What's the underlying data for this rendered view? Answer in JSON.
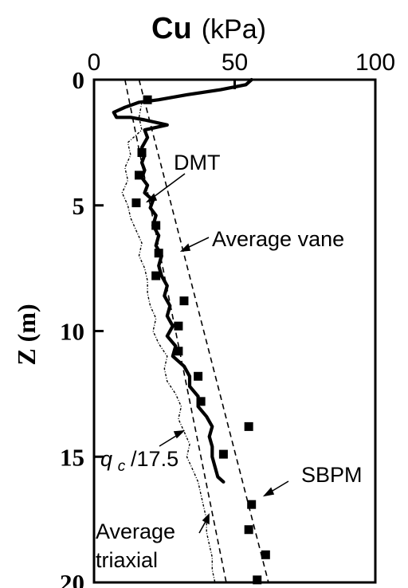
{
  "chart_data": {
    "type": "line",
    "title_bold": "Cu",
    "title_unit": "(kPa)",
    "ylabel": "Z (m)",
    "xlim": [
      0,
      100
    ],
    "ylim": [
      0,
      20
    ],
    "x_ticks": [
      "0",
      "50",
      "100"
    ],
    "x_tick_values": [
      0,
      50,
      100
    ],
    "y_ticks": [
      "0",
      "5",
      "10",
      "15",
      "20"
    ],
    "y_tick_values": [
      0,
      5,
      10,
      15,
      20
    ],
    "y_inverted": true,
    "grid": false,
    "series": [
      {
        "name": "DMT",
        "style": "thick-solid",
        "points": [
          [
            56,
            0.0
          ],
          [
            54,
            0.2
          ],
          [
            45,
            0.4
          ],
          [
            33,
            0.6
          ],
          [
            23,
            0.8
          ],
          [
            16,
            0.9
          ],
          [
            11,
            1.1
          ],
          [
            7,
            1.3
          ],
          [
            8,
            1.5
          ],
          [
            13,
            1.5
          ],
          [
            18,
            1.6
          ],
          [
            26,
            1.8
          ],
          [
            18,
            2.0
          ],
          [
            19,
            2.3
          ],
          [
            17,
            2.7
          ],
          [
            18,
            3.0
          ],
          [
            17,
            3.3
          ],
          [
            18,
            3.6
          ],
          [
            17,
            3.9
          ],
          [
            19,
            4.2
          ],
          [
            18,
            4.5
          ],
          [
            21,
            4.8
          ],
          [
            20,
            5.1
          ],
          [
            22,
            5.4
          ],
          [
            21,
            5.8
          ],
          [
            23,
            6.2
          ],
          [
            22,
            6.6
          ],
          [
            24,
            7.0
          ],
          [
            23,
            7.4
          ],
          [
            24,
            7.8
          ],
          [
            26,
            8.2
          ],
          [
            25,
            8.6
          ],
          [
            27,
            9.0
          ],
          [
            26,
            9.4
          ],
          [
            28,
            9.8
          ],
          [
            26,
            10.2
          ],
          [
            29,
            10.6
          ],
          [
            28,
            11.0
          ],
          [
            32,
            11.4
          ],
          [
            34,
            11.8
          ],
          [
            34,
            12.2
          ],
          [
            37,
            12.6
          ],
          [
            37,
            13.0
          ],
          [
            40,
            13.4
          ],
          [
            42,
            13.8
          ],
          [
            41,
            14.2
          ],
          [
            42,
            14.6
          ],
          [
            42,
            15.0
          ],
          [
            43,
            15.4
          ],
          [
            44,
            15.8
          ],
          [
            46,
            16.0
          ]
        ]
      },
      {
        "name": "qc/17.5",
        "style": "dotted-dash",
        "points": [
          [
            17,
            0.9
          ],
          [
            16,
            1.5
          ],
          [
            17,
            2.0
          ],
          [
            12,
            2.5
          ],
          [
            13,
            3.0
          ],
          [
            11,
            3.5
          ],
          [
            12,
            4.0
          ],
          [
            10,
            4.5
          ],
          [
            12,
            5.0
          ],
          [
            13,
            5.5
          ],
          [
            15,
            6.0
          ],
          [
            17,
            6.5
          ],
          [
            16,
            7.0
          ],
          [
            18,
            7.5
          ],
          [
            19,
            8.0
          ],
          [
            19,
            8.5
          ],
          [
            20,
            9.0
          ],
          [
            22,
            9.5
          ],
          [
            21,
            10.0
          ],
          [
            23,
            10.5
          ],
          [
            26,
            11.0
          ],
          [
            25,
            11.5
          ],
          [
            26,
            12.0
          ],
          [
            29,
            12.5
          ],
          [
            31,
            13.0
          ],
          [
            30,
            13.5
          ],
          [
            32,
            14.0
          ],
          [
            34,
            14.5
          ],
          [
            33,
            15.0
          ],
          [
            35,
            15.5
          ],
          [
            37,
            16.0
          ],
          [
            38,
            16.5
          ],
          [
            39,
            17.0
          ],
          [
            40,
            17.5
          ],
          [
            40,
            18.0
          ],
          [
            41,
            18.5
          ],
          [
            42,
            19.0
          ],
          [
            42,
            19.5
          ],
          [
            43,
            20.0
          ]
        ]
      },
      {
        "name": "Average vane",
        "style": "dashed",
        "points": [
          [
            16,
            0
          ],
          [
            62,
            20
          ]
        ]
      },
      {
        "name": "Average triaxial",
        "style": "dashed",
        "points": [
          [
            11,
            0
          ],
          [
            47,
            20
          ]
        ]
      },
      {
        "name": "SBPM",
        "style": "square-markers",
        "points": [
          [
            19,
            0.8
          ],
          [
            17,
            2.9
          ],
          [
            16,
            3.8
          ],
          [
            15,
            4.9
          ],
          [
            22,
            5.8
          ],
          [
            23,
            6.9
          ],
          [
            22,
            7.8
          ],
          [
            32,
            8.8
          ],
          [
            30,
            9.8
          ],
          [
            30,
            10.8
          ],
          [
            37,
            11.8
          ],
          [
            38,
            12.8
          ],
          [
            55,
            13.8
          ],
          [
            46,
            14.9
          ],
          [
            56,
            16.9
          ],
          [
            55,
            17.9
          ],
          [
            61,
            18.9
          ],
          [
            58,
            19.9
          ]
        ]
      }
    ],
    "annotations": [
      {
        "text": "DMT",
        "target": "DMT"
      },
      {
        "text": "Average vane",
        "target": "Average vane"
      },
      {
        "text_main": "q",
        "text_sub": "c",
        "text_tail": "/17.5",
        "target": "qc/17.5"
      },
      {
        "text": "SBPM",
        "target": "SBPM"
      },
      {
        "text_line1": "Average",
        "text_line2": "triaxial",
        "target": "Average triaxial"
      }
    ]
  }
}
